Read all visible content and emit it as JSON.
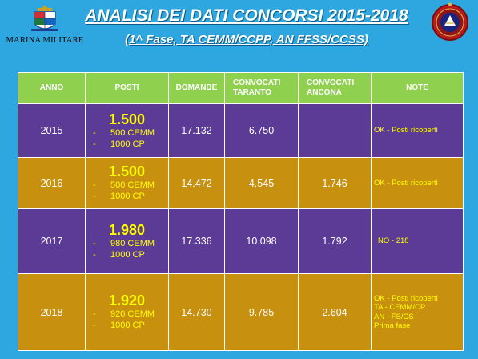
{
  "logo": {
    "caption": "MARINA MILITARE"
  },
  "title": "ANALISI DEI DATI CONCORSI 2015-2018",
  "subtitle": "(1^ Fase, TA CEMM/CCPP, AN FFSS/CCSS)",
  "table": {
    "headers": [
      "ANNO",
      "POSTI",
      "DOMANDE",
      "CONVOCATI TARANTO",
      "CONVOCATI ANCONA",
      "NOTE"
    ],
    "rows": [
      {
        "anno": "2015",
        "posti_total": "1.500",
        "posti_items": [
          "500 CEMM",
          "1000 CP"
        ],
        "domande": "17.132",
        "taranto": "6.750",
        "ancona": "",
        "note": [
          "OK - Posti ricoperti"
        ]
      },
      {
        "anno": "2016",
        "posti_total": "1.500",
        "posti_items": [
          "500 CEMM",
          "1000 CP"
        ],
        "domande": "14.472",
        "taranto": "4.545",
        "ancona": "1.746",
        "note": [
          "OK - Posti ricoperti"
        ]
      },
      {
        "anno": "2017",
        "posti_total": "1.980",
        "posti_items": [
          "980 CEMM",
          "1000 CP"
        ],
        "domande": "17.336",
        "taranto": "10.098",
        "ancona": "1.792",
        "note": [
          "NO - 218"
        ]
      },
      {
        "anno": "2018",
        "posti_total": "1.920",
        "posti_items": [
          "920 CEMM",
          "1000 CP"
        ],
        "domande": "14.730",
        "taranto": "9.785",
        "ancona": "2.604",
        "note": [
          "OK - Posti ricoperti",
          "TA - CEMM/CP",
          "AN - FS/CS",
          "Prima fase"
        ]
      }
    ]
  },
  "colors": {
    "background": "#2ea7e0",
    "header": "#8fd14f",
    "row_purple": "#5b3b96",
    "row_gold": "#c8900f",
    "accent_text": "#ffff00"
  }
}
